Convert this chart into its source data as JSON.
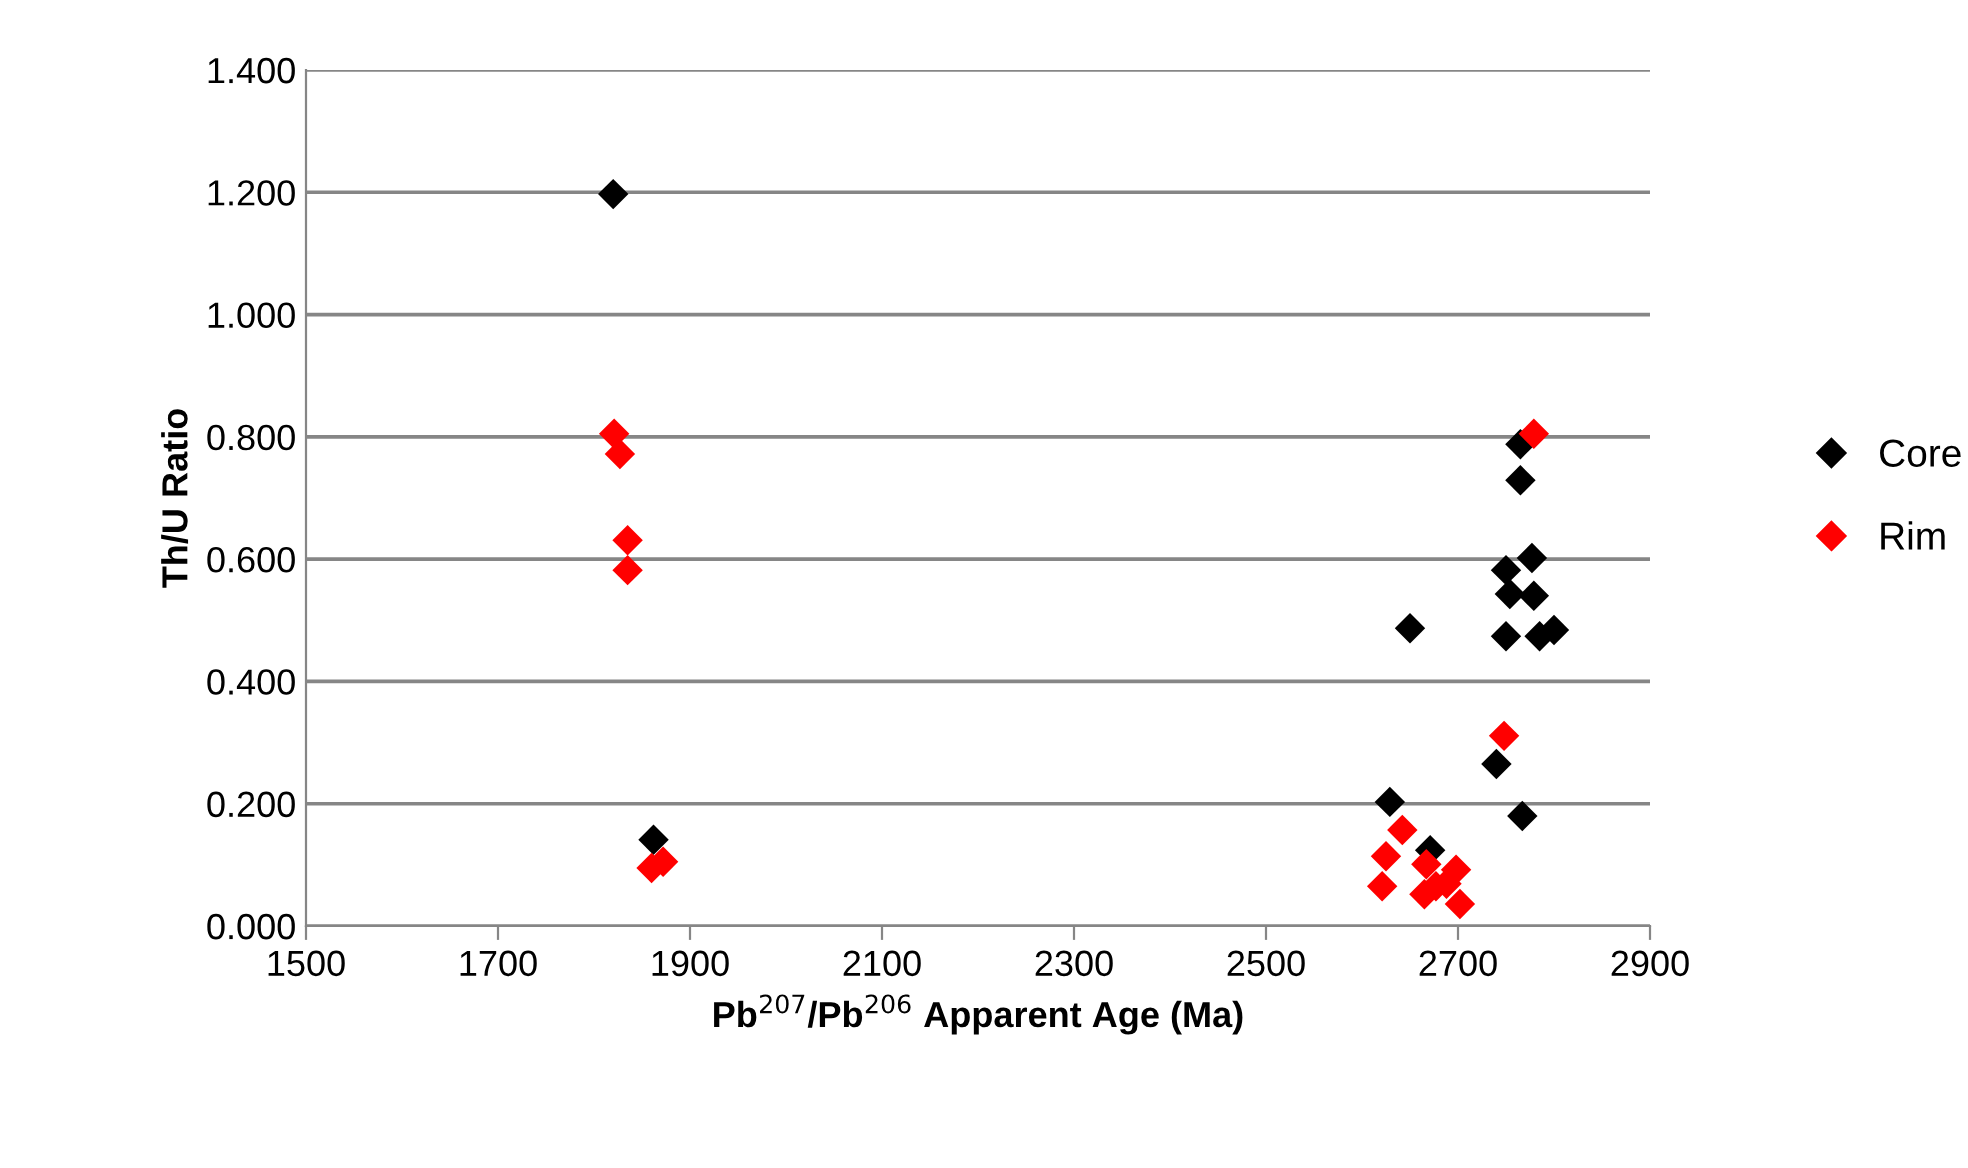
{
  "chart_data": {
    "type": "scatter",
    "xlabel": "Pb$^{207}$/Pb$^{206}$ Apparent Age (Ma)",
    "ylabel": "Th/U Ratio",
    "xlim": [
      1500,
      2900
    ],
    "xticks": [
      1500,
      1700,
      1900,
      2100,
      2300,
      2500,
      2700,
      2900
    ],
    "ylim": [
      0,
      1.4
    ],
    "yticks": [
      {
        "value": 0,
        "label": "0.000"
      },
      {
        "value": 0.2,
        "label": "0.200"
      },
      {
        "value": 0.4,
        "label": "0.400"
      },
      {
        "value": 0.6,
        "label": "0.600"
      },
      {
        "value": 0.8,
        "label": "0.800"
      },
      {
        "value": 1.0,
        "label": "1.000"
      },
      {
        "value": 1.2,
        "label": "1.200"
      },
      {
        "value": 1.4,
        "label": "1.400"
      }
    ],
    "grid": "y",
    "legend": "right",
    "marker": "diamond",
    "series": [
      {
        "name": "Core",
        "color": "#000000",
        "x": [
          1820,
          1862,
          2650,
          2765,
          2765,
          2777,
          2750,
          2754,
          2779,
          2750,
          2785,
          2800,
          2740,
          2629,
          2767,
          2671
        ],
        "values": [
          1.197,
          0.141,
          0.487,
          0.788,
          0.729,
          0.602,
          0.582,
          0.543,
          0.54,
          0.474,
          0.474,
          0.484,
          0.265,
          0.203,
          0.18,
          0.124
        ]
      },
      {
        "name": "Rim",
        "color": "#ff0000",
        "x": [
          1821,
          1827,
          1835,
          1835,
          1860,
          1872,
          2779,
          2748,
          2642,
          2625,
          2621,
          2667,
          2665,
          2677,
          2698,
          2702,
          2688
        ],
        "values": [
          0.805,
          0.772,
          0.631,
          0.582,
          0.095,
          0.105,
          0.805,
          0.311,
          0.157,
          0.114,
          0.065,
          0.101,
          0.052,
          0.065,
          0.092,
          0.036,
          0.069
        ]
      }
    ]
  }
}
